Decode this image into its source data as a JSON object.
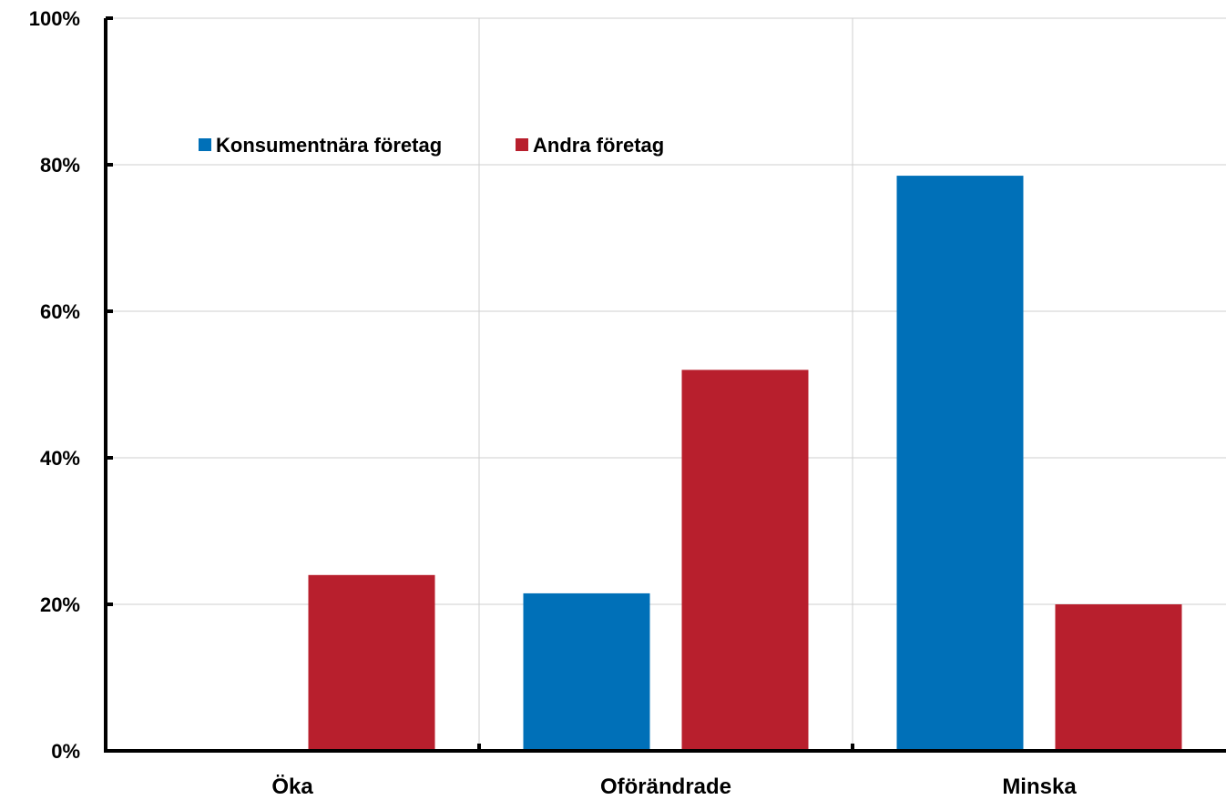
{
  "chart_data": {
    "type": "bar",
    "categories": [
      "Öka",
      "Oförändrade",
      "Minska"
    ],
    "series": [
      {
        "name": "Konsumentnära företag",
        "values": [
          0,
          21.5,
          78.5
        ],
        "color": "#0070b8"
      },
      {
        "name": "Andra företag",
        "values": [
          24,
          52,
          20
        ],
        "color": "#b81f2d"
      }
    ],
    "title": "",
    "xlabel": "",
    "ylabel": "",
    "ylim": [
      0,
      100
    ],
    "yticks": [
      0,
      20,
      40,
      60,
      80,
      100
    ],
    "ytick_labels": [
      "0%",
      "20%",
      "40%",
      "60%",
      "80%",
      "100%"
    ],
    "grid": true,
    "legend_position": "top-left"
  }
}
